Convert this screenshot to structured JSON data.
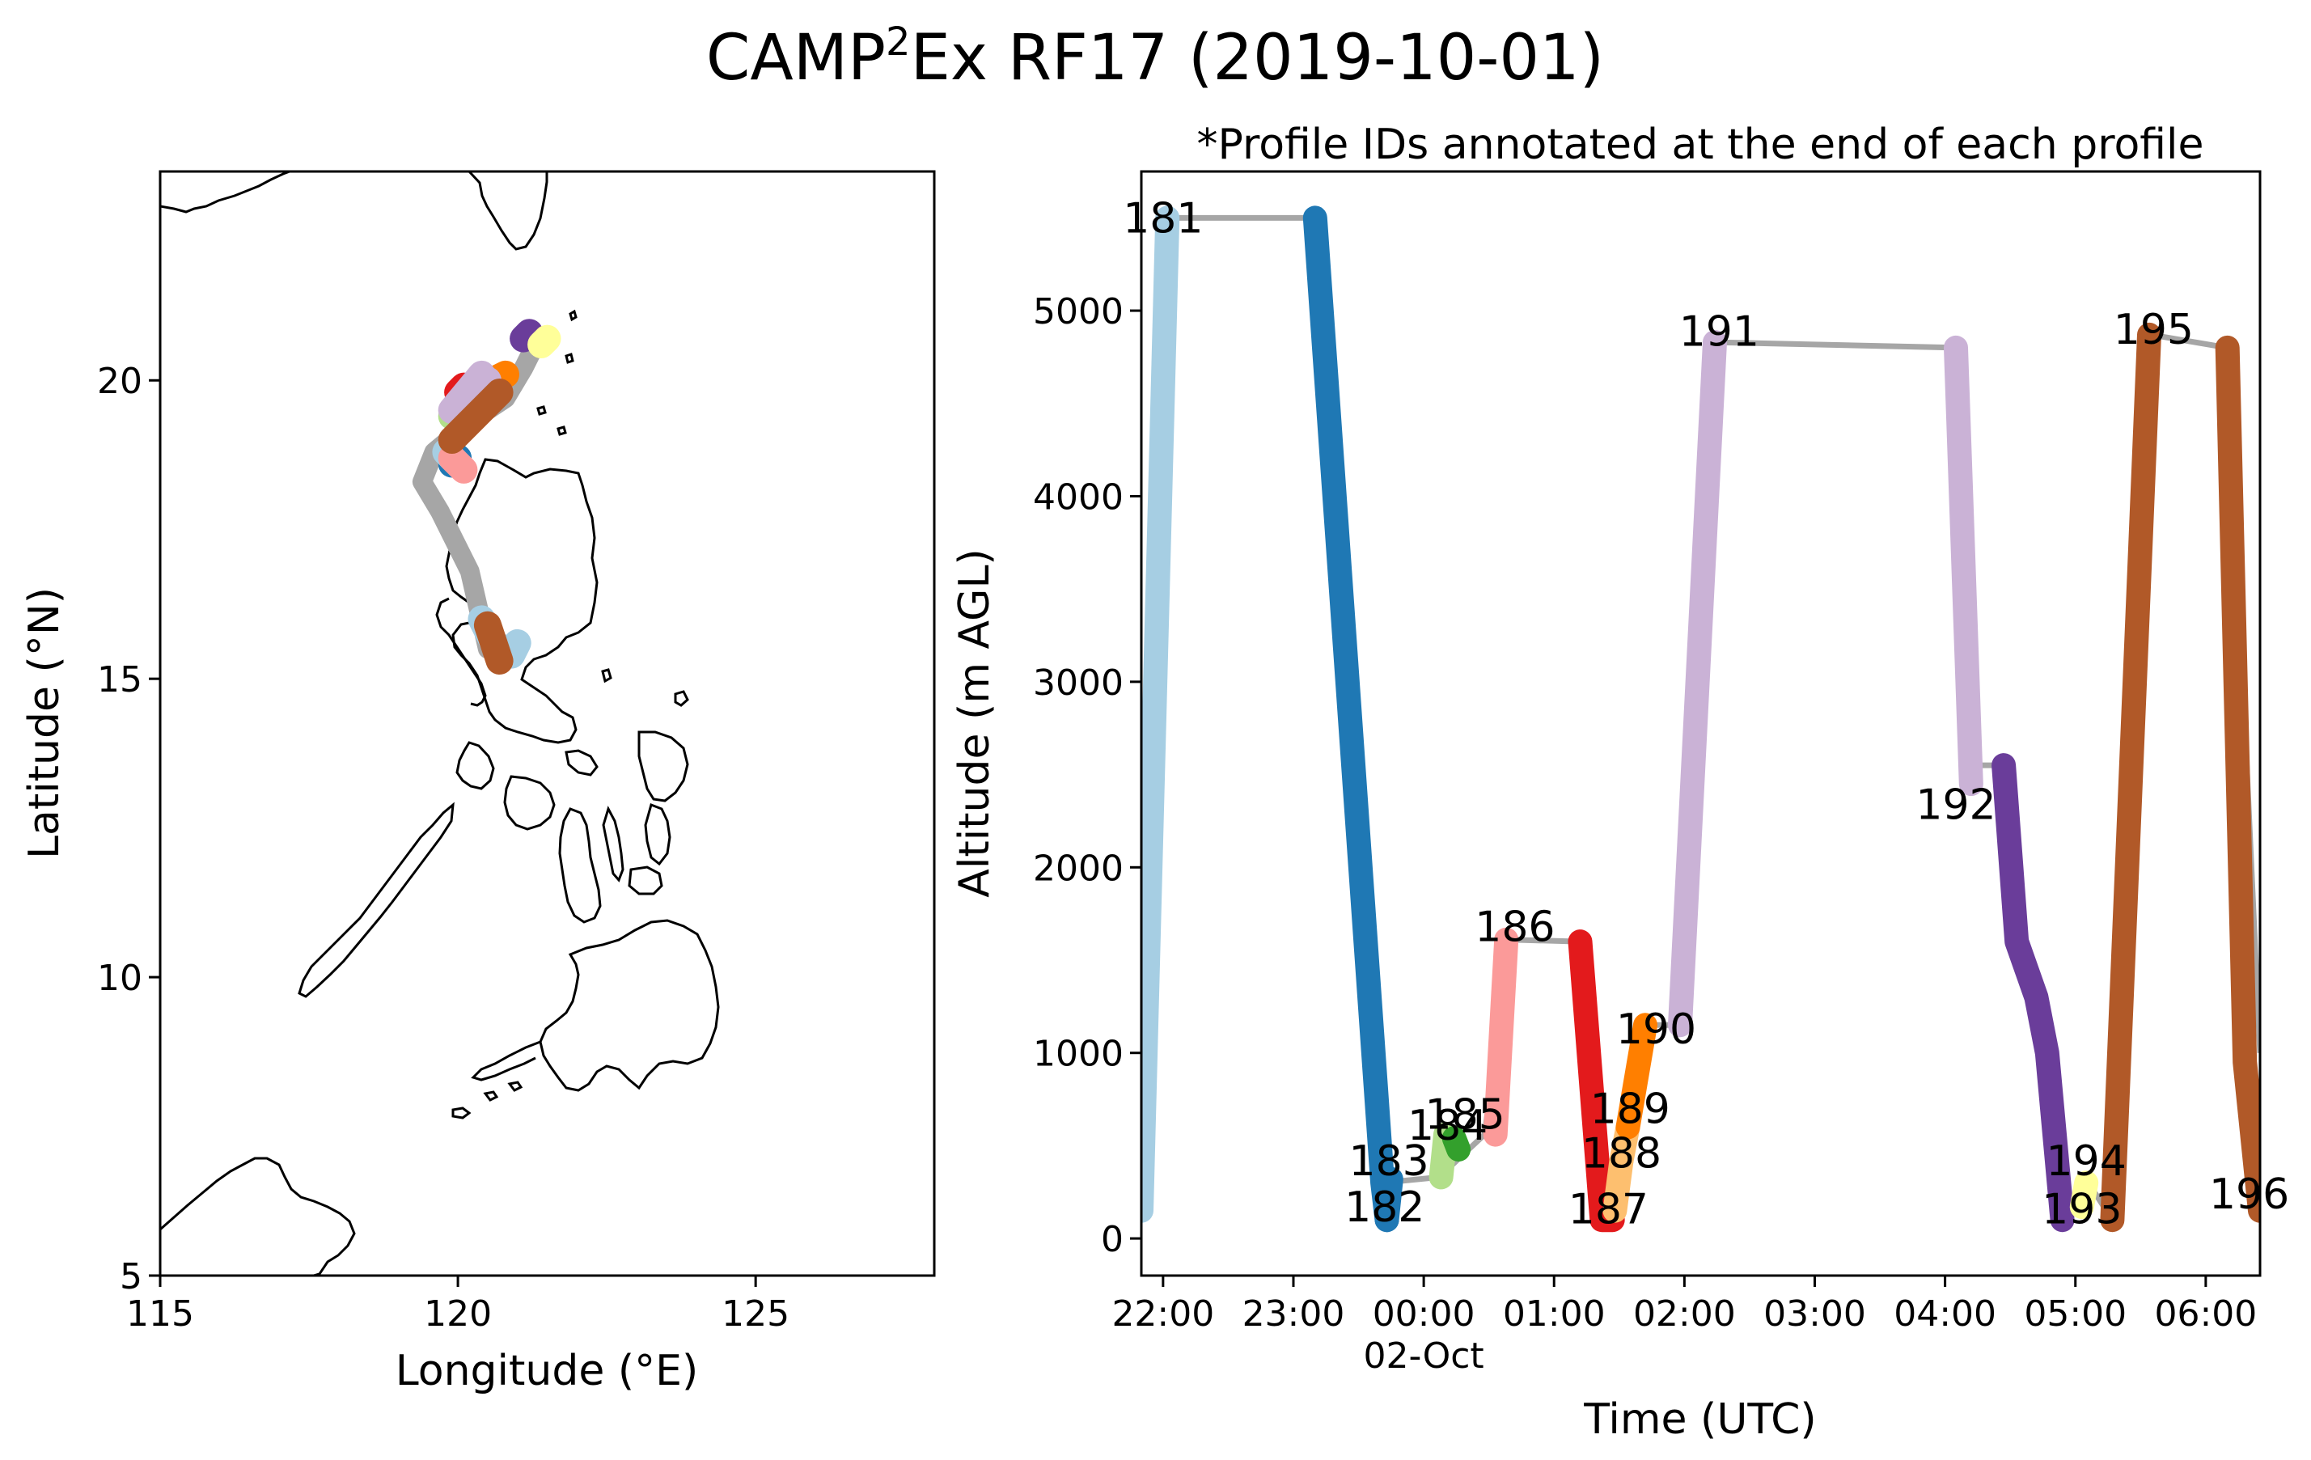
{
  "figure": {
    "title_main": "CAMP",
    "title_sup": "2",
    "title_rest": "Ex RF17 (2019-10-01)"
  },
  "chart_data": [
    {
      "type": "map",
      "xlabel": "Longitude (°E)",
      "ylabel": "Latitude (°N)",
      "xlim": [
        115,
        128
      ],
      "ylim": [
        5,
        23.5
      ],
      "xticks": [
        115,
        120,
        125
      ],
      "yticks": [
        5,
        10,
        15,
        20
      ],
      "track_color": "#a6a6a6",
      "track": [
        [
          120.5,
          15.5
        ],
        [
          120.2,
          16.8
        ],
        [
          119.7,
          17.8
        ],
        [
          119.4,
          18.3
        ],
        [
          119.6,
          18.8
        ],
        [
          120.2,
          19.3
        ],
        [
          120.8,
          19.7
        ],
        [
          121.1,
          20.2
        ],
        [
          121.3,
          20.6
        ]
      ],
      "profiles": [
        {
          "id": "181",
          "color": "#a6cee3",
          "points": [
            [
              120.4,
              16.0
            ],
            [
              120.6,
              15.6
            ],
            [
              120.9,
              15.4
            ],
            [
              121.0,
              15.6
            ]
          ]
        },
        {
          "id": "182",
          "color": "#1f78b4",
          "points": [
            [
              119.9,
              18.6
            ],
            [
              120.0,
              18.7
            ]
          ]
        },
        {
          "id": "183",
          "color": "#a6cee3",
          "points": [
            [
              119.8,
              18.8
            ],
            [
              119.9,
              18.7
            ]
          ]
        },
        {
          "id": "184",
          "color": "#b2df8a",
          "points": [
            [
              119.9,
              19.4
            ],
            [
              120.0,
              19.5
            ]
          ]
        },
        {
          "id": "185",
          "color": "#33a02c",
          "points": [
            [
              120.1,
              19.6
            ],
            [
              120.2,
              19.7
            ]
          ]
        },
        {
          "id": "186",
          "color": "#fb9a99",
          "points": [
            [
              119.9,
              18.7
            ],
            [
              120.1,
              18.5
            ]
          ]
        },
        {
          "id": "187",
          "color": "#e31a1c",
          "points": [
            [
              120.0,
              19.8
            ],
            [
              120.1,
              19.9
            ]
          ]
        },
        {
          "id": "188",
          "color": "#fdbf6f",
          "points": [
            [
              120.2,
              19.6
            ],
            [
              120.4,
              19.8
            ]
          ]
        },
        {
          "id": "189",
          "color": "#fdbf6f",
          "points": [
            [
              120.5,
              19.9
            ],
            [
              120.6,
              20.0
            ]
          ]
        },
        {
          "id": "190",
          "color": "#ff7f00",
          "points": [
            [
              120.6,
              20.0
            ],
            [
              120.8,
              20.1
            ]
          ]
        },
        {
          "id": "191",
          "color": "#cab2d6",
          "points": [
            [
              119.9,
              19.5
            ],
            [
              120.4,
              20.1
            ]
          ]
        },
        {
          "id": "192",
          "color": "#cab2d6",
          "points": [
            [
              120.3,
              19.8
            ],
            [
              120.5,
              20.0
            ]
          ]
        },
        {
          "id": "193",
          "color": "#6a3d9a",
          "points": [
            [
              121.1,
              20.7
            ],
            [
              121.2,
              20.8
            ]
          ]
        },
        {
          "id": "194",
          "color": "#ffff99",
          "points": [
            [
              121.4,
              20.6
            ],
            [
              121.5,
              20.7
            ]
          ]
        },
        {
          "id": "195",
          "color": "#b15928",
          "points": [
            [
              119.9,
              19.0
            ],
            [
              120.7,
              19.8
            ]
          ]
        },
        {
          "id": "196",
          "color": "#b15928",
          "points": [
            [
              120.5,
              15.9
            ],
            [
              120.7,
              15.3
            ]
          ]
        }
      ]
    },
    {
      "type": "line",
      "subtitle": "*Profile IDs annotated at the end of each profile",
      "xlabel": "Time (UTC)",
      "ylabel": "Altitude (m AGL)",
      "xlim": [
        "2019-10-01 21:50",
        "2019-10-02 06:25"
      ],
      "ylim": [
        -200,
        5750
      ],
      "xticks": [
        {
          "t": "2019-10-01 22:00",
          "label": "22:00"
        },
        {
          "t": "2019-10-01 23:00",
          "label": "23:00"
        },
        {
          "t": "2019-10-02 00:00",
          "label": "00:00"
        },
        {
          "t": "2019-10-02 01:00",
          "label": "01:00"
        },
        {
          "t": "2019-10-02 02:00",
          "label": "02:00"
        },
        {
          "t": "2019-10-02 03:00",
          "label": "03:00"
        },
        {
          "t": "2019-10-02 04:00",
          "label": "04:00"
        },
        {
          "t": "2019-10-02 05:00",
          "label": "05:00"
        },
        {
          "t": "2019-10-02 06:00",
          "label": "06:00"
        }
      ],
      "date_label": {
        "t": "2019-10-02 00:00",
        "label": "02-Oct"
      },
      "yticks": [
        0,
        1000,
        2000,
        3000,
        4000,
        5000
      ],
      "track_color": "#a6a6a6",
      "track": [
        [
          "2019-10-01 21:50",
          150
        ],
        [
          "2019-10-01 22:02",
          5500
        ],
        [
          "2019-10-01 23:10",
          5500
        ],
        [
          "2019-10-01 23:41",
          300
        ],
        [
          "2019-10-02 00:07",
          330
        ],
        [
          "2019-10-02 00:28",
          560
        ],
        [
          "2019-10-02 00:40",
          1610
        ],
        [
          "2019-10-02 01:12",
          1600
        ],
        [
          "2019-10-02 01:22",
          100
        ],
        [
          "2019-10-02 01:35",
          620
        ],
        [
          "2019-10-02 01:45",
          1150
        ],
        [
          "2019-10-02 01:58",
          1150
        ],
        [
          "2019-10-02 02:14",
          4830
        ],
        [
          "2019-10-02 04:05",
          4800
        ],
        [
          "2019-10-02 04:12",
          2550
        ],
        [
          "2019-10-02 04:25",
          2550
        ],
        [
          "2019-10-02 04:56",
          100
        ],
        [
          "2019-10-02 05:06",
          300
        ],
        [
          "2019-10-02 05:17",
          100
        ],
        [
          "2019-10-02 05:35",
          4870
        ],
        [
          "2019-10-02 06:10",
          4800
        ],
        [
          "2019-10-02 06:25",
          1000
        ]
      ],
      "series": [
        {
          "id": "181",
          "color": "#a6cee3",
          "points": [
            [
              "2019-10-01 21:50",
              150
            ],
            [
              "2019-10-01 22:02",
              5500
            ]
          ],
          "label_at": [
            "2019-10-01 22:00",
            5500
          ]
        },
        {
          "id": "182",
          "color": "#1f78b4",
          "points": [
            [
              "2019-10-01 23:10",
              5500
            ],
            [
              "2019-10-01 23:41",
              300
            ],
            [
              "2019-10-01 23:43",
              100
            ]
          ],
          "label_at": [
            "2019-10-01 23:42",
            170
          ]
        },
        {
          "id": "183",
          "color": "#1f78b4",
          "points": [
            [
              "2019-10-01 23:43",
              100
            ],
            [
              "2019-10-01 23:45",
              320
            ]
          ],
          "label_at": [
            "2019-10-01 23:44",
            420
          ]
        },
        {
          "id": "184",
          "color": "#b2df8a",
          "points": [
            [
              "2019-10-02 00:08",
              330
            ],
            [
              "2019-10-02 00:10",
              560
            ]
          ],
          "label_at": [
            "2019-10-02 00:11",
            610
          ]
        },
        {
          "id": "185",
          "color": "#33a02c",
          "points": [
            [
              "2019-10-02 00:14",
              540
            ],
            [
              "2019-10-02 00:16",
              480
            ]
          ],
          "label_at": [
            "2019-10-02 00:19",
            670
          ]
        },
        {
          "id": "186",
          "color": "#fb9a99",
          "points": [
            [
              "2019-10-02 00:33",
              560
            ],
            [
              "2019-10-02 00:38",
              1610
            ]
          ],
          "label_at": [
            "2019-10-02 00:42",
            1680
          ]
        },
        {
          "id": "187",
          "color": "#e31a1c",
          "points": [
            [
              "2019-10-02 01:12",
              1600
            ],
            [
              "2019-10-02 01:22",
              100
            ],
            [
              "2019-10-02 01:27",
              100
            ]
          ],
          "label_at": [
            "2019-10-02 01:25",
            160
          ]
        },
        {
          "id": "188",
          "color": "#fdbf6f",
          "points": [
            [
              "2019-10-02 01:28",
              150
            ],
            [
              "2019-10-02 01:31",
              420
            ]
          ],
          "label_at": [
            "2019-10-02 01:31",
            460
          ]
        },
        {
          "id": "189",
          "color": "#fdbf6f",
          "points": [
            [
              "2019-10-02 01:31",
              420
            ],
            [
              "2019-10-02 01:34",
              600
            ]
          ],
          "label_at": [
            "2019-10-02 01:35",
            700
          ]
        },
        {
          "id": "190",
          "color": "#ff7f00",
          "points": [
            [
              "2019-10-02 01:34",
              600
            ],
            [
              "2019-10-02 01:42",
              1150
            ]
          ],
          "label_at": [
            "2019-10-02 01:47",
            1130
          ]
        },
        {
          "id": "191",
          "color": "#cab2d6",
          "points": [
            [
              "2019-10-02 01:58",
              1150
            ],
            [
              "2019-10-02 02:14",
              4830
            ]
          ],
          "label_at": [
            "2019-10-02 02:16",
            4890
          ]
        },
        {
          "id": "192",
          "color": "#cab2d6",
          "points": [
            [
              "2019-10-02 04:05",
              4800
            ],
            [
              "2019-10-02 04:12",
              2450
            ]
          ],
          "label_at": [
            "2019-10-02 04:05",
            2340
          ]
        },
        {
          "id": "193",
          "color": "#6a3d9a",
          "points": [
            [
              "2019-10-02 04:27",
              2550
            ],
            [
              "2019-10-02 04:33",
              1600
            ],
            [
              "2019-10-02 04:42",
              1300
            ],
            [
              "2019-10-02 04:47",
              1000
            ],
            [
              "2019-10-02 04:54",
              100
            ]
          ],
          "label_at": [
            "2019-10-02 05:03",
            160
          ]
        },
        {
          "id": "194",
          "color": "#ffff99",
          "points": [
            [
              "2019-10-02 05:03",
              170
            ],
            [
              "2019-10-02 05:05",
              300
            ]
          ],
          "label_at": [
            "2019-10-02 05:05",
            420
          ]
        },
        {
          "id": "195",
          "color": "#b15928",
          "points": [
            [
              "2019-10-02 05:17",
              100
            ],
            [
              "2019-10-02 05:34",
              4870
            ]
          ],
          "label_at": [
            "2019-10-02 05:36",
            4900
          ]
        },
        {
          "id": "196",
          "color": "#b15928",
          "points": [
            [
              "2019-10-02 06:10",
              4800
            ],
            [
              "2019-10-02 06:18",
              950
            ],
            [
              "2019-10-02 06:25",
              150
            ]
          ],
          "label_at": [
            "2019-10-02 06:20",
            240
          ]
        }
      ]
    }
  ]
}
